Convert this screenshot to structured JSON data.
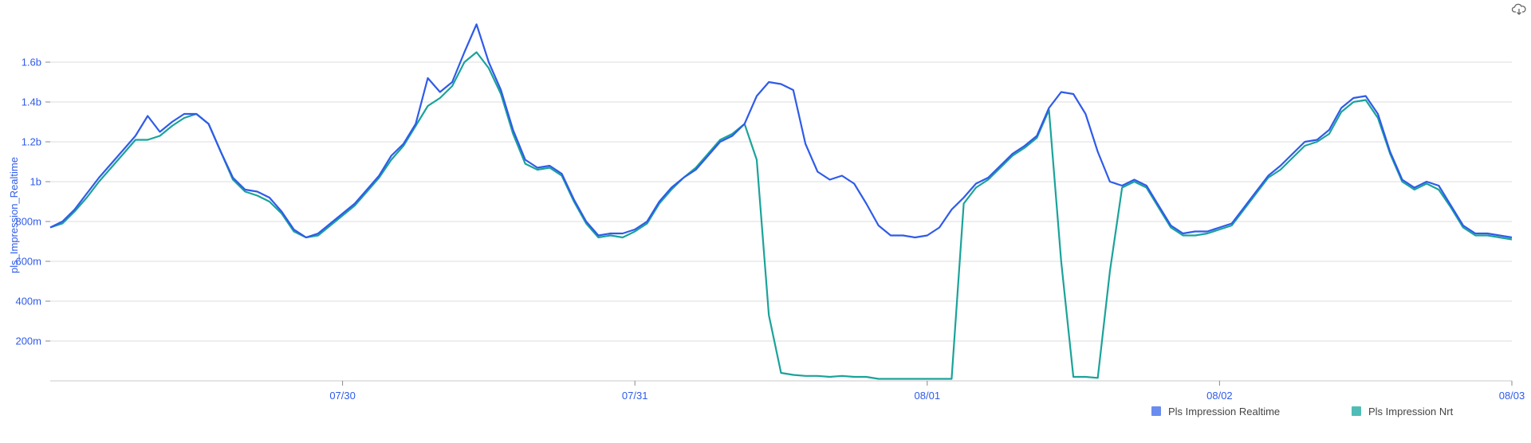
{
  "chart_data": {
    "type": "line",
    "ylabel": "pls_Impression_Realtime",
    "y_ticks": [
      "200m",
      "400m",
      "600m",
      "800m",
      "1b",
      "1.2b",
      "1.4b",
      "1.6b"
    ],
    "y_tick_values": [
      0.2,
      0.4,
      0.6,
      0.8,
      1.0,
      1.2,
      1.4,
      1.6
    ],
    "ylim": [
      0,
      1.8
    ],
    "x_ticks": [
      "07/30",
      "07/31",
      "08/01",
      "08/02",
      "08/03"
    ],
    "x_tick_positions": [
      24,
      48,
      72,
      96,
      120
    ],
    "xlim": [
      0,
      120
    ],
    "x_unit": "hours from 07/29 00:00",
    "grid": true,
    "legend_position": "bottom-right",
    "series": [
      {
        "name": "Pls Impression Realtime",
        "color": "#2f5bea",
        "x": [
          0,
          1,
          2,
          3,
          4,
          5,
          6,
          7,
          8,
          9,
          10,
          11,
          12,
          13,
          14,
          15,
          16,
          17,
          18,
          19,
          20,
          21,
          22,
          23,
          24,
          25,
          26,
          27,
          28,
          29,
          30,
          31,
          32,
          33,
          34,
          35,
          36,
          37,
          38,
          39,
          40,
          41,
          42,
          43,
          44,
          45,
          46,
          47,
          48,
          49,
          50,
          51,
          52,
          53,
          54,
          55,
          56,
          57,
          58,
          59,
          60,
          61,
          62,
          63,
          64,
          65,
          66,
          67,
          68,
          69,
          70,
          71,
          72,
          73,
          74,
          75,
          76,
          77,
          78,
          79,
          80,
          81,
          82,
          83,
          84,
          85,
          86,
          87,
          88,
          89,
          90,
          91,
          92,
          93,
          94,
          95,
          96,
          97,
          98,
          99,
          100,
          101,
          102,
          103,
          104,
          105,
          106,
          107,
          108,
          109,
          110,
          111,
          112,
          113,
          114,
          115,
          116,
          117,
          118,
          119,
          120
        ],
        "values": [
          0.77,
          0.8,
          0.86,
          0.94,
          1.02,
          1.09,
          1.16,
          1.23,
          1.33,
          1.25,
          1.3,
          1.34,
          1.34,
          1.29,
          1.15,
          1.02,
          0.96,
          0.95,
          0.92,
          0.85,
          0.76,
          0.72,
          0.74,
          0.79,
          0.84,
          0.89,
          0.96,
          1.03,
          1.13,
          1.19,
          1.29,
          1.52,
          1.45,
          1.5,
          1.65,
          1.79,
          1.6,
          1.46,
          1.26,
          1.11,
          1.07,
          1.08,
          1.04,
          0.91,
          0.8,
          0.73,
          0.74,
          0.74,
          0.76,
          0.8,
          0.9,
          0.97,
          1.02,
          1.06,
          1.13,
          1.2,
          1.23,
          1.29,
          1.43,
          1.5,
          1.49,
          1.46,
          1.19,
          1.05,
          1.01,
          1.03,
          0.99,
          0.89,
          0.78,
          0.73,
          0.73,
          0.72,
          0.73,
          0.77,
          0.86,
          0.92,
          0.99,
          1.02,
          1.08,
          1.14,
          1.18,
          1.23,
          1.37,
          1.45,
          1.44,
          1.34,
          1.15,
          1.0,
          0.98,
          1.01,
          0.98,
          0.88,
          0.78,
          0.74,
          0.75,
          0.75,
          0.77,
          0.79,
          0.87,
          0.95,
          1.03,
          1.08,
          1.14,
          1.2,
          1.21,
          1.26,
          1.37,
          1.42,
          1.43,
          1.34,
          1.15,
          1.01,
          0.97,
          1.0,
          0.98,
          0.88,
          0.78,
          0.74,
          0.74,
          0.73,
          0.72
        ]
      },
      {
        "name": "Pls Impression Nrt",
        "color": "#1aa39a",
        "x": [
          0,
          1,
          2,
          3,
          4,
          5,
          6,
          7,
          8,
          9,
          10,
          11,
          12,
          13,
          14,
          15,
          16,
          17,
          18,
          19,
          20,
          21,
          22,
          23,
          24,
          25,
          26,
          27,
          28,
          29,
          30,
          31,
          32,
          33,
          34,
          35,
          36,
          37,
          38,
          39,
          40,
          41,
          42,
          43,
          44,
          45,
          46,
          47,
          48,
          49,
          50,
          51,
          52,
          53,
          54,
          55,
          56,
          57,
          58,
          59,
          60,
          61,
          62,
          63,
          64,
          65,
          66,
          67,
          68,
          69,
          70,
          71,
          72,
          73,
          74,
          75,
          76,
          77,
          78,
          79,
          80,
          81,
          82,
          83,
          84,
          85,
          86,
          87,
          88,
          89,
          90,
          91,
          92,
          93,
          94,
          95,
          96,
          97,
          98,
          99,
          100,
          101,
          102,
          103,
          104,
          105,
          106,
          107,
          108,
          109,
          110,
          111,
          112,
          113,
          114,
          115,
          116,
          117,
          118,
          119,
          120
        ],
        "values": [
          0.77,
          0.79,
          0.85,
          0.92,
          1.0,
          1.07,
          1.14,
          1.21,
          1.21,
          1.23,
          1.28,
          1.32,
          1.34,
          1.29,
          1.15,
          1.01,
          0.95,
          0.93,
          0.9,
          0.84,
          0.75,
          0.72,
          0.73,
          0.78,
          0.83,
          0.88,
          0.95,
          1.02,
          1.11,
          1.18,
          1.28,
          1.38,
          1.42,
          1.48,
          1.6,
          1.65,
          1.57,
          1.44,
          1.24,
          1.09,
          1.06,
          1.07,
          1.03,
          0.9,
          0.79,
          0.72,
          0.73,
          0.72,
          0.75,
          0.79,
          0.89,
          0.96,
          1.02,
          1.07,
          1.14,
          1.21,
          1.24,
          1.29,
          1.11,
          0.33,
          0.04,
          0.03,
          0.025,
          0.025,
          0.02,
          0.025,
          0.02,
          0.02,
          0.01,
          0.01,
          0.01,
          0.01,
          0.01,
          0.01,
          0.01,
          0.89,
          0.97,
          1.01,
          1.07,
          1.13,
          1.17,
          1.22,
          1.36,
          0.6,
          0.02,
          0.02,
          0.015,
          0.55,
          0.97,
          1.0,
          0.97,
          0.87,
          0.77,
          0.73,
          0.73,
          0.74,
          0.76,
          0.78,
          0.86,
          0.94,
          1.02,
          1.06,
          1.12,
          1.18,
          1.2,
          1.24,
          1.35,
          1.4,
          1.41,
          1.32,
          1.14,
          1.0,
          0.96,
          0.99,
          0.96,
          0.87,
          0.77,
          0.73,
          0.73,
          0.72,
          0.71
        ]
      }
    ]
  },
  "toolbar": {
    "download_icon": "cloud-download-icon"
  }
}
